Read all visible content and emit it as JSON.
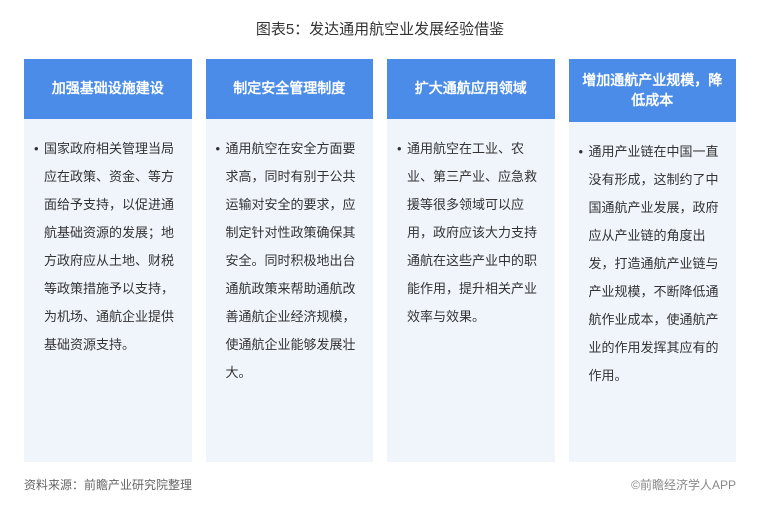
{
  "chart": {
    "title": "图表5：发达通用航空业发展经验借鉴",
    "type": "infographic",
    "background_color": "#ffffff",
    "header_bg_color": "#4a8ce8",
    "header_text_color": "#ffffff",
    "body_bg_color": "#f0f5fc",
    "body_text_color": "#333333",
    "title_fontsize": 15,
    "header_fontsize": 14,
    "body_fontsize": 13,
    "body_line_height": 2.15,
    "columns": 4,
    "card_gap": 14
  },
  "cards": [
    {
      "header": "加强基础设施建设",
      "body": "国家政府相关管理当局应在政策、资金、等方面给予支持，以促进通航基础资源的发展；地方政府应从土地、财税等政策措施予以支持，为机场、通航企业提供基础资源支持。"
    },
    {
      "header": "制定安全管理制度",
      "body": "通用航空在安全方面要求高，同时有别于公共运输对安全的要求，应制定针对性政策确保其安全。同时积极地出台通航政策来帮助通航改善通航企业经济规模，使通航企业能够发展壮大。"
    },
    {
      "header": "扩大通航应用领域",
      "body": "通用航空在工业、农业、第三产业、应急救援等很多领域可以应用，政府应该大力支持通航在这些产业中的职能作用，提升相关产业效率与效果。"
    },
    {
      "header": "增加通航产业规模，降低成本",
      "body": "通用产业链在中国一直没有形成，这制约了中国通航产业发展，政府应从产业链的角度出发，打造通航产业链与产业规模，不断降低通航作业成本，使通航产业的作用发挥其应有的作用。"
    }
  ],
  "footer": {
    "source": "资料来源：前瞻产业研究院整理",
    "copyright": "©前瞻经济学人APP"
  }
}
